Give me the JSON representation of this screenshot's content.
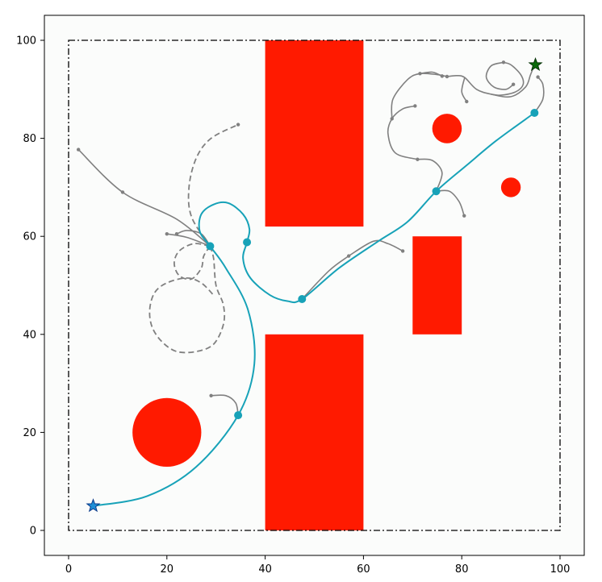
{
  "chart_data": {
    "type": "scatter",
    "title": "",
    "xlabel": "",
    "ylabel": "",
    "xlim": [
      -5,
      105
    ],
    "ylim": [
      -5,
      105
    ],
    "xticks": [
      0,
      20,
      40,
      60,
      80,
      100
    ],
    "yticks": [
      0,
      20,
      40,
      60,
      80,
      100
    ],
    "grid": false,
    "colors": {
      "obstacle": "#ff1a00",
      "path": "#17a2b8",
      "tree": "#808080",
      "boundary": "#000000",
      "start": "#1f8fd6",
      "goal": "#0a6a0a",
      "plot_bg": "#fbfcfb"
    },
    "boundary": {
      "x": [
        0,
        100
      ],
      "y": [
        0,
        100
      ]
    },
    "rect_obstacles": [
      {
        "x": [
          40,
          60
        ],
        "y": [
          62,
          100
        ]
      },
      {
        "x": [
          40,
          60
        ],
        "y": [
          0,
          40
        ]
      },
      {
        "x": [
          70,
          80
        ],
        "y": [
          40,
          60
        ]
      }
    ],
    "circle_obstacles": [
      {
        "cx": 20,
        "cy": 20,
        "r": 7
      },
      {
        "cx": 77,
        "cy": 82,
        "r": 3
      },
      {
        "cx": 90,
        "cy": 70,
        "r": 2
      }
    ],
    "start": {
      "x": 5,
      "y": 5
    },
    "goal": {
      "x": 95,
      "y": 95
    },
    "path": {
      "waypoints": [
        [
          5,
          5
        ],
        [
          34.5,
          23.5
        ],
        [
          28.8,
          58
        ],
        [
          36.3,
          58.8
        ],
        [
          47.5,
          47.2
        ],
        [
          74.8,
          69.2
        ],
        [
          94.8,
          85.2
        ]
      ],
      "curve": [
        [
          5,
          5
        ],
        [
          16,
          7
        ],
        [
          26,
          13
        ],
        [
          34.5,
          23.5
        ],
        [
          37.8,
          34
        ],
        [
          36.5,
          45
        ],
        [
          32,
          53.5
        ],
        [
          28.8,
          58
        ],
        [
          26.7,
          61
        ],
        [
          27,
          64.5
        ],
        [
          29.5,
          66.5
        ],
        [
          32.5,
          66.8
        ],
        [
          35.5,
          64.5
        ],
        [
          36.8,
          61.5
        ],
        [
          36.3,
          58.8
        ],
        [
          35.5,
          55.5
        ],
        [
          37,
          51.5
        ],
        [
          41,
          48
        ],
        [
          44.5,
          46.8
        ],
        [
          47.5,
          47.2
        ],
        [
          55,
          53.5
        ],
        [
          63,
          59
        ],
        [
          69,
          63
        ],
        [
          74.8,
          69.2
        ],
        [
          81,
          74.5
        ],
        [
          87,
          79.5
        ],
        [
          94.8,
          85.2
        ]
      ]
    },
    "tree_solid": [
      [
        [
          28.8,
          58
        ],
        [
          22,
          63.5
        ],
        [
          11,
          69
        ],
        [
          2,
          77.7
        ]
      ],
      [
        [
          28.8,
          58
        ],
        [
          27,
          60.5
        ],
        [
          24,
          61.2
        ],
        [
          22,
          60.5
        ]
      ],
      [
        [
          28.8,
          58
        ],
        [
          24,
          59.8
        ],
        [
          20,
          60.5
        ]
      ],
      [
        [
          47.5,
          47.2
        ],
        [
          53,
          53
        ],
        [
          57,
          56
        ]
      ],
      [
        [
          57,
          56
        ],
        [
          62,
          59
        ],
        [
          65,
          58.5
        ],
        [
          68,
          57
        ]
      ],
      [
        [
          34.5,
          23.5
        ],
        [
          34,
          26
        ],
        [
          32,
          27.5
        ],
        [
          29,
          27.5
        ]
      ],
      [
        [
          74.8,
          69.2
        ],
        [
          77.5,
          69.2
        ],
        [
          79.5,
          67
        ],
        [
          80.5,
          64.2
        ]
      ],
      [
        [
          74.8,
          69.2
        ],
        [
          76,
          73
        ],
        [
          74,
          75.5
        ],
        [
          71,
          75.7
        ]
      ],
      [
        [
          71,
          75.7
        ],
        [
          66.5,
          77
        ],
        [
          65,
          81
        ],
        [
          65.8,
          84
        ],
        [
          68,
          86
        ],
        [
          70.5,
          86.6
        ]
      ],
      [
        [
          65.8,
          84
        ],
        [
          66,
          88
        ],
        [
          69,
          92
        ],
        [
          71.5,
          93.2
        ],
        [
          75,
          93
        ],
        [
          77,
          92.6
        ]
      ],
      [
        [
          71.5,
          93.2
        ],
        [
          74,
          93.5
        ],
        [
          76,
          92.7
        ]
      ],
      [
        [
          77,
          92.6
        ],
        [
          79,
          92.8
        ],
        [
          80.6,
          92.4
        ],
        [
          83,
          90
        ],
        [
          86,
          89
        ],
        [
          90,
          88.5
        ],
        [
          93,
          90.5
        ],
        [
          94,
          93
        ],
        [
          94.8,
          95
        ]
      ],
      [
        [
          80.6,
          92.4
        ],
        [
          80,
          89.5
        ],
        [
          81,
          87.5
        ]
      ],
      [
        [
          86,
          89
        ],
        [
          88,
          88.8
        ],
        [
          91,
          89.5
        ],
        [
          92.5,
          91
        ],
        [
          92,
          93
        ],
        [
          90,
          95
        ],
        [
          88.5,
          95.5
        ]
      ],
      [
        [
          88.5,
          95.5
        ],
        [
          86,
          94.8
        ],
        [
          85,
          92.5
        ],
        [
          86.5,
          90.5
        ],
        [
          89,
          90
        ],
        [
          90.5,
          91
        ]
      ],
      [
        [
          94.8,
          85.2
        ],
        [
          96.5,
          88
        ],
        [
          96.5,
          91
        ],
        [
          95.5,
          92.5
        ]
      ]
    ],
    "tree_dashed": [
      [
        [
          28.8,
          58
        ],
        [
          25,
          64
        ],
        [
          24.5,
          70
        ],
        [
          26,
          76
        ],
        [
          29,
          80
        ],
        [
          34.5,
          82.8
        ]
      ],
      [
        [
          28.8,
          58
        ],
        [
          27.5,
          56
        ],
        [
          27,
          53.5
        ],
        [
          25,
          51.3
        ],
        [
          22.5,
          52
        ],
        [
          21.5,
          54.5
        ],
        [
          22.5,
          57
        ],
        [
          25.5,
          58.5
        ],
        [
          28.8,
          58
        ]
      ],
      [
        [
          28.8,
          58
        ],
        [
          29.5,
          55.5
        ],
        [
          30,
          50
        ],
        [
          31.5,
          46
        ],
        [
          31.5,
          42
        ],
        [
          29.5,
          38
        ],
        [
          26,
          36.5
        ],
        [
          22,
          36.5
        ],
        [
          19,
          38.5
        ],
        [
          17,
          41.5
        ],
        [
          16.5,
          45
        ],
        [
          17.5,
          48.5
        ],
        [
          20,
          50.5
        ],
        [
          24,
          51.5
        ],
        [
          27,
          50.5
        ],
        [
          29.5,
          48
        ]
      ]
    ],
    "tree_nodes": [
      [
        2,
        77.7
      ],
      [
        11,
        69
      ],
      [
        22,
        60.5
      ],
      [
        20,
        60.5
      ],
      [
        34.5,
        82.8
      ],
      [
        57,
        56
      ],
      [
        68,
        57
      ],
      [
        29,
        27.5
      ],
      [
        80.5,
        64.2
      ],
      [
        71,
        75.7
      ],
      [
        70.5,
        86.6
      ],
      [
        65.8,
        84
      ],
      [
        76,
        92.7
      ],
      [
        77,
        92.6
      ],
      [
        71.5,
        93.2
      ],
      [
        81,
        87.5
      ],
      [
        88.5,
        95.5
      ],
      [
        90.5,
        91
      ],
      [
        95.5,
        92.5
      ],
      [
        94.8,
        85.2
      ]
    ]
  }
}
